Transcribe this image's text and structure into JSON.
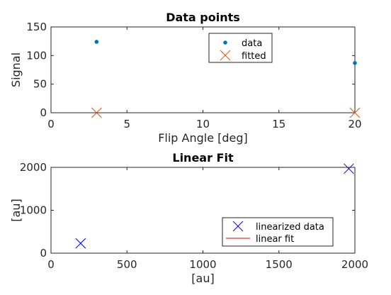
{
  "chart_data": [
    {
      "type": "scatter",
      "title": "Data points",
      "xlabel": "Flip Angle [deg]",
      "ylabel": "Signal",
      "xlim": [
        0,
        20
      ],
      "ylim": [
        0,
        150
      ],
      "xticks": [
        0,
        5,
        10,
        15,
        20
      ],
      "yticks": [
        0,
        50,
        100,
        150
      ],
      "grid": false,
      "legend": {
        "position": "top-center"
      },
      "series": [
        {
          "name": "data",
          "marker": "dot",
          "color": "#0072BD",
          "x": [
            3,
            20
          ],
          "y": [
            124,
            87
          ]
        },
        {
          "name": "fitted",
          "marker": "x",
          "color": "#D95319",
          "x": [
            3,
            20
          ],
          "y": [
            0,
            0
          ]
        }
      ]
    },
    {
      "type": "scatter",
      "title": "Linear Fit",
      "xlabel": "[au]",
      "ylabel": "[au]",
      "xlim": [
        0,
        2000
      ],
      "ylim": [
        0,
        2000
      ],
      "xticks": [
        0,
        500,
        1000,
        1500,
        2000
      ],
      "yticks": [
        0,
        1000,
        2000
      ],
      "grid": false,
      "legend": {
        "position": "bottom-right"
      },
      "series": [
        {
          "name": "linearized data",
          "marker": "x",
          "color": "#0000FF",
          "x": [
            195,
            1960
          ],
          "y": [
            230,
            1970
          ]
        },
        {
          "name": "linear fit",
          "marker": "line",
          "color": "#D00000",
          "x": [],
          "y": []
        }
      ]
    }
  ]
}
